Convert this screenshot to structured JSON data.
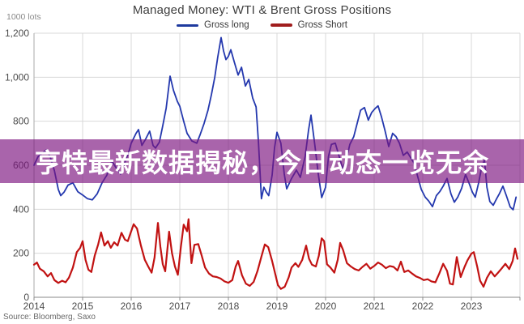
{
  "header": {
    "title": "Managed Money: WTI & Brent Gross Positions"
  },
  "footer": {
    "source": "Source: Bloomberg, Saxo"
  },
  "banner": {
    "text": "亨特最新数据揭秘，今日动态一览无余",
    "bg": "rgba(124,20,128,0.66)",
    "text_color": "#ffffff"
  },
  "chart_data": {
    "type": "line",
    "title": "Managed Money: WTI & Brent Gross Positions",
    "y_units": "1000 lots",
    "xlabel": "",
    "ylabel": "",
    "ylim": [
      0,
      1200
    ],
    "xlim": [
      2014,
      2024
    ],
    "grid": true,
    "legend_position": "top-center",
    "y_ticks": [
      0,
      200,
      400,
      600,
      800,
      1000,
      1200
    ],
    "y_tick_labels": [
      "0",
      "200",
      "400",
      "600",
      "800",
      "1,000",
      "1,200"
    ],
    "x_ticks": [
      2014,
      2015,
      2016,
      2017,
      2018,
      2019,
      2020,
      2021,
      2022,
      2023
    ],
    "x_tick_labels": [
      "2014",
      "2015",
      "2016",
      "2017",
      "2018",
      "2019",
      "2020",
      "2021",
      "2022",
      "2023"
    ],
    "series": [
      {
        "name": "Gross long",
        "color": "#2438ae",
        "legend_color": "#1e3a9e",
        "width": 1.8,
        "points": [
          [
            2014.0,
            600
          ],
          [
            2014.08,
            638
          ],
          [
            2014.17,
            655
          ],
          [
            2014.25,
            670
          ],
          [
            2014.33,
            640
          ],
          [
            2014.42,
            575
          ],
          [
            2014.5,
            490
          ],
          [
            2014.55,
            462
          ],
          [
            2014.62,
            478
          ],
          [
            2014.7,
            510
          ],
          [
            2014.8,
            520
          ],
          [
            2014.9,
            480
          ],
          [
            2015.0,
            465
          ],
          [
            2015.1,
            448
          ],
          [
            2015.2,
            443
          ],
          [
            2015.3,
            470
          ],
          [
            2015.4,
            520
          ],
          [
            2015.5,
            555
          ],
          [
            2015.55,
            590
          ],
          [
            2015.6,
            620
          ],
          [
            2015.7,
            585
          ],
          [
            2015.78,
            560
          ],
          [
            2015.85,
            600
          ],
          [
            2015.95,
            660
          ],
          [
            2016.0,
            700
          ],
          [
            2016.1,
            745
          ],
          [
            2016.15,
            762
          ],
          [
            2016.22,
            690
          ],
          [
            2016.3,
            720
          ],
          [
            2016.38,
            755
          ],
          [
            2016.45,
            690
          ],
          [
            2016.5,
            678
          ],
          [
            2016.58,
            705
          ],
          [
            2016.65,
            780
          ],
          [
            2016.72,
            860
          ],
          [
            2016.8,
            1005
          ],
          [
            2016.87,
            940
          ],
          [
            2016.95,
            890
          ],
          [
            2017.0,
            868
          ],
          [
            2017.08,
            800
          ],
          [
            2017.15,
            745
          ],
          [
            2017.25,
            710
          ],
          [
            2017.35,
            700
          ],
          [
            2017.42,
            740
          ],
          [
            2017.5,
            790
          ],
          [
            2017.58,
            850
          ],
          [
            2017.65,
            920
          ],
          [
            2017.72,
            1000
          ],
          [
            2017.78,
            1090
          ],
          [
            2017.85,
            1180
          ],
          [
            2017.9,
            1120
          ],
          [
            2017.95,
            1080
          ],
          [
            2018.0,
            1095
          ],
          [
            2018.05,
            1125
          ],
          [
            2018.12,
            1070
          ],
          [
            2018.2,
            1010
          ],
          [
            2018.27,
            1045
          ],
          [
            2018.35,
            960
          ],
          [
            2018.42,
            990
          ],
          [
            2018.5,
            905
          ],
          [
            2018.57,
            865
          ],
          [
            2018.62,
            700
          ],
          [
            2018.68,
            448
          ],
          [
            2018.73,
            500
          ],
          [
            2018.78,
            478
          ],
          [
            2018.83,
            462
          ],
          [
            2018.9,
            555
          ],
          [
            2018.95,
            680
          ],
          [
            2019.0,
            750
          ],
          [
            2019.08,
            700
          ],
          [
            2019.15,
            560
          ],
          [
            2019.2,
            493
          ],
          [
            2019.3,
            540
          ],
          [
            2019.4,
            578
          ],
          [
            2019.48,
            545
          ],
          [
            2019.58,
            640
          ],
          [
            2019.65,
            760
          ],
          [
            2019.7,
            828
          ],
          [
            2019.78,
            690
          ],
          [
            2019.85,
            560
          ],
          [
            2019.92,
            453
          ],
          [
            2020.0,
            500
          ],
          [
            2020.06,
            640
          ],
          [
            2020.12,
            695
          ],
          [
            2020.2,
            700
          ],
          [
            2020.28,
            640
          ],
          [
            2020.35,
            585
          ],
          [
            2020.42,
            620
          ],
          [
            2020.5,
            695
          ],
          [
            2020.58,
            730
          ],
          [
            2020.65,
            790
          ],
          [
            2020.72,
            850
          ],
          [
            2020.8,
            862
          ],
          [
            2020.88,
            805
          ],
          [
            2020.95,
            840
          ],
          [
            2021.02,
            858
          ],
          [
            2021.08,
            870
          ],
          [
            2021.15,
            820
          ],
          [
            2021.22,
            760
          ],
          [
            2021.3,
            685
          ],
          [
            2021.38,
            745
          ],
          [
            2021.45,
            730
          ],
          [
            2021.52,
            700
          ],
          [
            2021.6,
            645
          ],
          [
            2021.68,
            660
          ],
          [
            2021.75,
            635
          ],
          [
            2021.82,
            610
          ],
          [
            2021.9,
            545
          ],
          [
            2021.97,
            490
          ],
          [
            2022.05,
            455
          ],
          [
            2022.12,
            438
          ],
          [
            2022.2,
            412
          ],
          [
            2022.28,
            462
          ],
          [
            2022.35,
            480
          ],
          [
            2022.42,
            505
          ],
          [
            2022.5,
            540
          ],
          [
            2022.58,
            470
          ],
          [
            2022.65,
            432
          ],
          [
            2022.72,
            455
          ],
          [
            2022.8,
            495
          ],
          [
            2022.88,
            558
          ],
          [
            2022.95,
            520
          ],
          [
            2023.02,
            478
          ],
          [
            2023.08,
            455
          ],
          [
            2023.15,
            520
          ],
          [
            2023.22,
            600
          ],
          [
            2023.27,
            622
          ],
          [
            2023.32,
            500
          ],
          [
            2023.38,
            435
          ],
          [
            2023.45,
            418
          ],
          [
            2023.52,
            448
          ],
          [
            2023.58,
            472
          ],
          [
            2023.65,
            505
          ],
          [
            2023.72,
            462
          ],
          [
            2023.8,
            410
          ],
          [
            2023.86,
            398
          ],
          [
            2023.92,
            455
          ]
        ]
      },
      {
        "name": "Gross Short",
        "color": "#c11212",
        "legend_color": "#a01d1d",
        "width": 2.2,
        "points": [
          [
            2014.0,
            148
          ],
          [
            2014.06,
            158
          ],
          [
            2014.12,
            130
          ],
          [
            2014.2,
            118
          ],
          [
            2014.28,
            95
          ],
          [
            2014.35,
            110
          ],
          [
            2014.42,
            78
          ],
          [
            2014.5,
            65
          ],
          [
            2014.58,
            75
          ],
          [
            2014.65,
            68
          ],
          [
            2014.72,
            90
          ],
          [
            2014.8,
            135
          ],
          [
            2014.88,
            205
          ],
          [
            2014.95,
            225
          ],
          [
            2015.0,
            255
          ],
          [
            2015.06,
            170
          ],
          [
            2015.12,
            125
          ],
          [
            2015.18,
            115
          ],
          [
            2015.25,
            190
          ],
          [
            2015.32,
            240
          ],
          [
            2015.38,
            295
          ],
          [
            2015.45,
            235
          ],
          [
            2015.52,
            255
          ],
          [
            2015.58,
            225
          ],
          [
            2015.65,
            250
          ],
          [
            2015.72,
            235
          ],
          [
            2015.8,
            293
          ],
          [
            2015.87,
            262
          ],
          [
            2015.93,
            255
          ],
          [
            2016.0,
            300
          ],
          [
            2016.05,
            332
          ],
          [
            2016.12,
            312
          ],
          [
            2016.2,
            235
          ],
          [
            2016.28,
            170
          ],
          [
            2016.35,
            140
          ],
          [
            2016.42,
            112
          ],
          [
            2016.48,
            180
          ],
          [
            2016.55,
            338
          ],
          [
            2016.6,
            230
          ],
          [
            2016.65,
            150
          ],
          [
            2016.7,
            118
          ],
          [
            2016.78,
            298
          ],
          [
            2016.84,
            200
          ],
          [
            2016.9,
            140
          ],
          [
            2016.96,
            102
          ],
          [
            2017.02,
            225
          ],
          [
            2017.08,
            330
          ],
          [
            2017.15,
            300
          ],
          [
            2017.18,
            355
          ],
          [
            2017.24,
            155
          ],
          [
            2017.3,
            238
          ],
          [
            2017.38,
            242
          ],
          [
            2017.45,
            190
          ],
          [
            2017.52,
            135
          ],
          [
            2017.6,
            108
          ],
          [
            2017.68,
            95
          ],
          [
            2017.76,
            92
          ],
          [
            2017.84,
            85
          ],
          [
            2017.92,
            72
          ],
          [
            2018.0,
            66
          ],
          [
            2018.08,
            78
          ],
          [
            2018.15,
            140
          ],
          [
            2018.2,
            165
          ],
          [
            2018.28,
            100
          ],
          [
            2018.36,
            62
          ],
          [
            2018.44,
            52
          ],
          [
            2018.52,
            70
          ],
          [
            2018.6,
            120
          ],
          [
            2018.68,
            185
          ],
          [
            2018.75,
            240
          ],
          [
            2018.82,
            228
          ],
          [
            2018.9,
            165
          ],
          [
            2018.96,
            110
          ],
          [
            2019.02,
            55
          ],
          [
            2019.08,
            38
          ],
          [
            2019.16,
            48
          ],
          [
            2019.24,
            90
          ],
          [
            2019.3,
            135
          ],
          [
            2019.38,
            155
          ],
          [
            2019.44,
            138
          ],
          [
            2019.52,
            170
          ],
          [
            2019.6,
            235
          ],
          [
            2019.66,
            175
          ],
          [
            2019.72,
            148
          ],
          [
            2019.8,
            140
          ],
          [
            2019.86,
            188
          ],
          [
            2019.92,
            268
          ],
          [
            2019.97,
            255
          ],
          [
            2020.03,
            150
          ],
          [
            2020.1,
            135
          ],
          [
            2020.18,
            112
          ],
          [
            2020.25,
            170
          ],
          [
            2020.3,
            247
          ],
          [
            2020.36,
            215
          ],
          [
            2020.44,
            155
          ],
          [
            2020.52,
            140
          ],
          [
            2020.6,
            128
          ],
          [
            2020.68,
            122
          ],
          [
            2020.76,
            138
          ],
          [
            2020.84,
            152
          ],
          [
            2020.92,
            130
          ],
          [
            2021.0,
            142
          ],
          [
            2021.08,
            158
          ],
          [
            2021.16,
            148
          ],
          [
            2021.24,
            132
          ],
          [
            2021.32,
            142
          ],
          [
            2021.4,
            138
          ],
          [
            2021.48,
            122
          ],
          [
            2021.55,
            162
          ],
          [
            2021.62,
            115
          ],
          [
            2021.7,
            122
          ],
          [
            2021.78,
            108
          ],
          [
            2021.86,
            95
          ],
          [
            2021.94,
            88
          ],
          [
            2022.02,
            78
          ],
          [
            2022.1,
            82
          ],
          [
            2022.18,
            72
          ],
          [
            2022.26,
            68
          ],
          [
            2022.34,
            108
          ],
          [
            2022.42,
            152
          ],
          [
            2022.5,
            120
          ],
          [
            2022.56,
            62
          ],
          [
            2022.62,
            58
          ],
          [
            2022.7,
            183
          ],
          [
            2022.78,
            92
          ],
          [
            2022.86,
            138
          ],
          [
            2022.92,
            168
          ],
          [
            2023.0,
            198
          ],
          [
            2023.05,
            205
          ],
          [
            2023.12,
            140
          ],
          [
            2023.18,
            75
          ],
          [
            2023.25,
            48
          ],
          [
            2023.32,
            88
          ],
          [
            2023.4,
            118
          ],
          [
            2023.48,
            95
          ],
          [
            2023.55,
            112
          ],
          [
            2023.62,
            130
          ],
          [
            2023.7,
            152
          ],
          [
            2023.78,
            128
          ],
          [
            2023.85,
            165
          ],
          [
            2023.9,
            222
          ],
          [
            2023.95,
            175
          ]
        ]
      }
    ]
  }
}
